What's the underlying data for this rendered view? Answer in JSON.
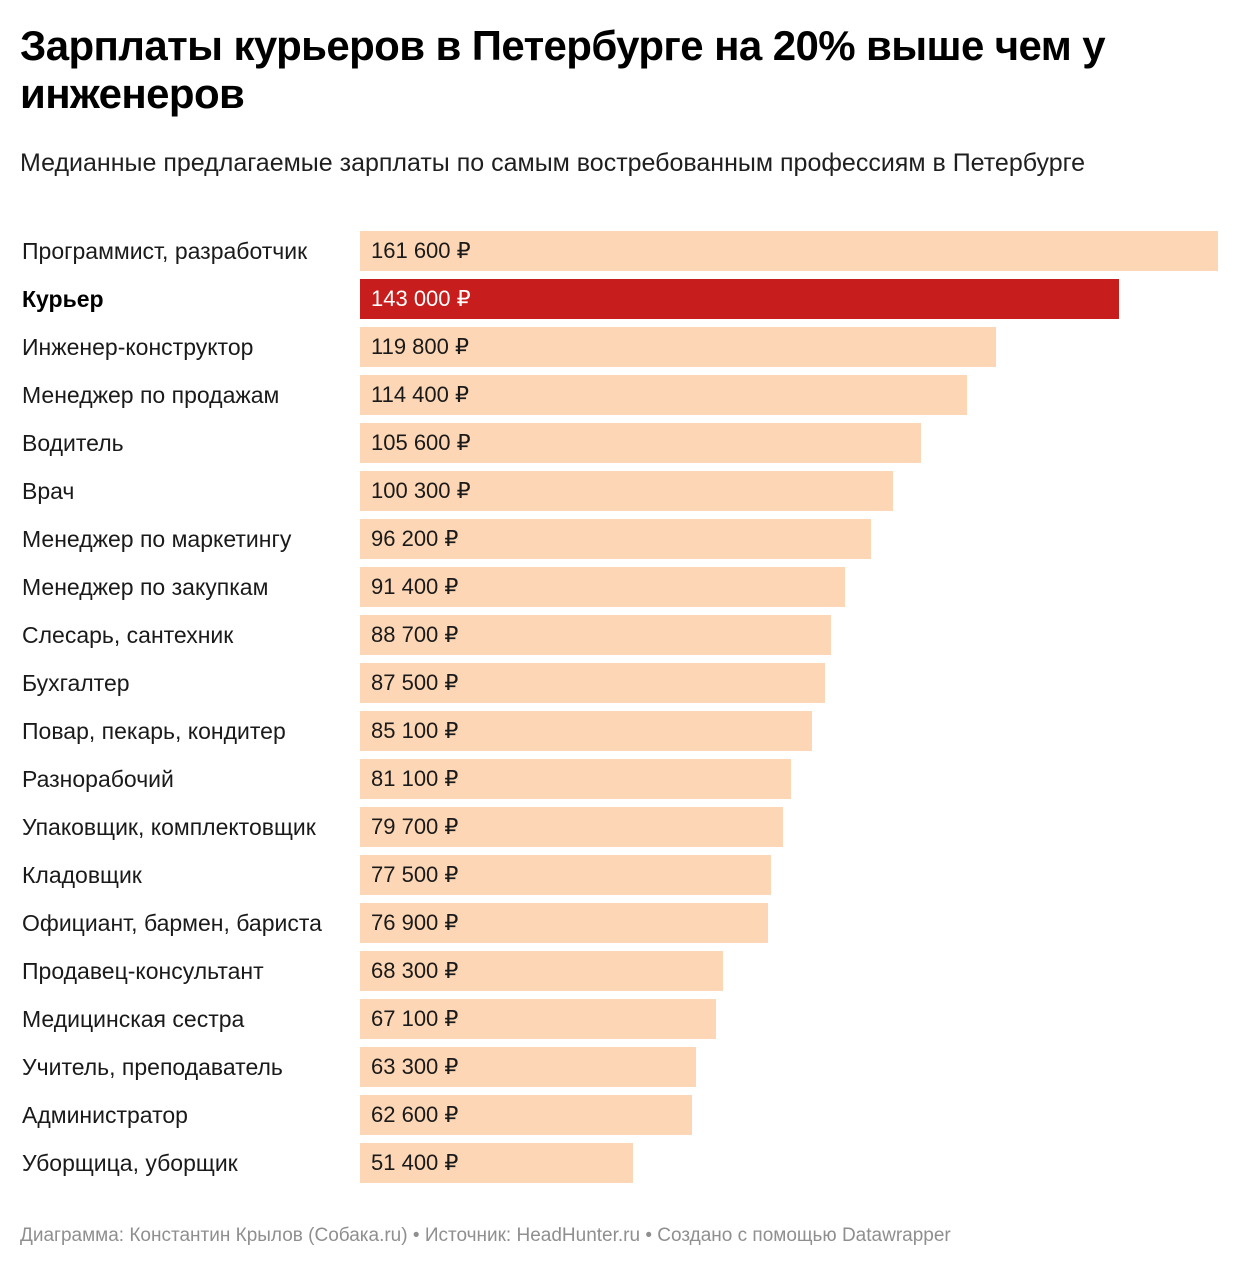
{
  "header": {
    "title": "Зарплаты курьеров в Петербурге на 20% выше чем у инженеров",
    "subtitle": "Медианные предлагаемые зарплаты по самым востребованным профессиям в Петербурге"
  },
  "chart_data": {
    "type": "bar",
    "orientation": "horizontal",
    "title": "Зарплаты курьеров в Петербурге на 20% выше чем у инженеров",
    "subtitle": "Медианные предлагаемые зарплаты по самым востребованным профессиям в Петербурге",
    "unit": "₽",
    "xlim": [
      0,
      161600
    ],
    "highlight_category": "Курьер",
    "colors": {
      "bar": "#fdd6b5",
      "highlight": "#c71e1d"
    },
    "categories": [
      "Программист, разработчик",
      "Курьер",
      "Инженер-конструктор",
      "Менеджер по продажам",
      "Водитель",
      "Врач",
      "Менеджер по маркетингу",
      "Менеджер по закупкам",
      "Слесарь, сантехник",
      "Бухгалтер",
      "Повар, пекарь, кондитер",
      "Разнорабочий",
      "Упаковщик, комплектовщик",
      "Кладовщик",
      "Официант, бармен, бариста",
      "Продавец-консультант",
      "Медицинская сестра",
      "Учитель, преподаватель",
      "Администратор",
      "Уборщица, уборщик"
    ],
    "values": [
      161600,
      143000,
      119800,
      114400,
      105600,
      100300,
      96200,
      91400,
      88700,
      87500,
      85100,
      81100,
      79700,
      77500,
      76900,
      68300,
      67100,
      63300,
      62600,
      51400
    ],
    "value_labels": [
      "161 600 ₽",
      "143 000 ₽",
      "119 800 ₽",
      "114 400 ₽",
      "105 600 ₽",
      "100 300 ₽",
      "96 200 ₽",
      "91 400 ₽",
      "88 700 ₽",
      "87 500 ₽",
      "85 100 ₽",
      "81 100 ₽",
      "79 700 ₽",
      "77 500 ₽",
      "76 900 ₽",
      "68 300 ₽",
      "67 100 ₽",
      "63 300 ₽",
      "62 600 ₽",
      "51 400 ₽"
    ]
  },
  "footer": {
    "author": "Диаграмма: Константин Крылов (Собака.ru)",
    "separator": " • ",
    "source": "Источник: HeadHunter.ru",
    "tool": "Создано с помощью Datawrapper"
  }
}
